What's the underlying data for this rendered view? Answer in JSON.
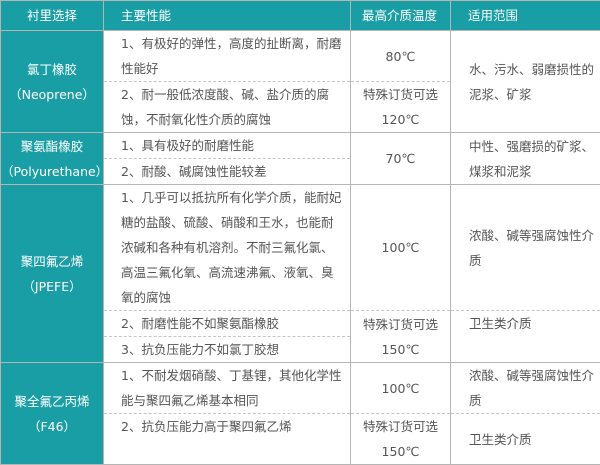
{
  "colors": {
    "header_bg": "#1a9ea5",
    "lining_bg": "#1a9ea5",
    "text": "#555555",
    "grid": "#b5b5b5"
  },
  "header": [
    "衬里选择",
    "主要性能",
    "最高介质温度",
    "适用范围"
  ],
  "rows": [
    {
      "name": "氯丁橡胶",
      "code": "（Neoprene）",
      "desc": [
        "1、有极好的弹性，高度的扯断离，耐磨性能好",
        "2、耐一般低浓度酸、碱、盐介质的腐蚀，不耐氧化性介质的腐蚀"
      ],
      "temp": [
        "80℃",
        "特殊订货可选",
        "120℃"
      ],
      "scope": [
        "水、污水、弱磨损性的泥浆、矿浆"
      ]
    },
    {
      "name": "聚氨酯橡胶",
      "code": "（Polyurethane）",
      "desc": [
        "1、具有极好的耐磨性能",
        "2、耐酸、碱腐蚀性能较差"
      ],
      "temp": [
        "70℃"
      ],
      "scope": [
        "中性、强磨损的矿浆、煤浆和泥浆"
      ]
    },
    {
      "name": "聚四氟乙烯",
      "code": "（JPEFE）",
      "desc": [
        "1、几乎可以抵抗所有化学介质，能耐妃糖的盐酸、硫酸、硝酸和王水，也能耐浓碱和各种有机溶剂。不耐三氟化氯、高温三氟化氧、高流速沸氟、液氧、臭氧的腐蚀",
        "2、耐磨性能不如聚氨酯橡胶",
        "3、抗负压能力不如氯丁胶想"
      ],
      "temp": [
        "100℃",
        "特殊订货可选",
        "150℃"
      ],
      "scope": [
        "浓酸、碱等强腐蚀性介质",
        "卫生类介质"
      ]
    },
    {
      "name": "聚全氟乙丙烯",
      "code": "（F46）",
      "desc": [
        "1、不耐发烟硝酸、丁基锂，其他化学性能与聚四氟乙烯基本相同",
        "2、抗负压能力高于聚四氟乙烯"
      ],
      "temp": [
        "100℃",
        "特殊订货可选",
        "150℃"
      ],
      "scope": [
        "浓酸、碱等强腐蚀性介质",
        "卫生类介质"
      ]
    }
  ]
}
